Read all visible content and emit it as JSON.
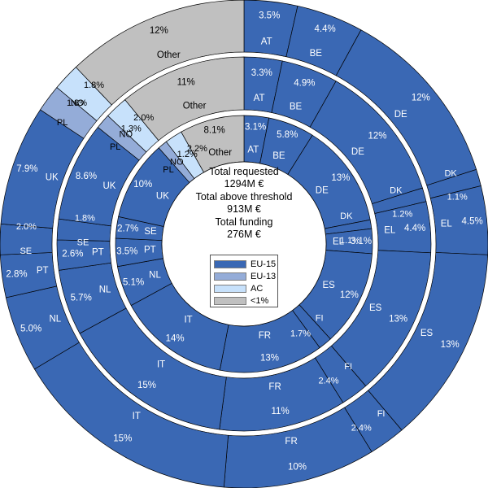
{
  "chart_data": {
    "type": "pie",
    "chart_subtype": "multi-ring donut (sunburst-style concentric rings)",
    "ring_order": "outer ring = Total requested, middle ring = Total above threshold, inner ring = Total funding",
    "start": "12 o'clock, clockwise",
    "center_text": [
      "Total requested",
      "1294M €",
      "Total above threshold",
      "913M €",
      "Total funding",
      "276M €"
    ],
    "legend": [
      {
        "label": "EU-15",
        "color": "#3a68b4"
      },
      {
        "label": "EU-13",
        "color": "#94acd8"
      },
      {
        "label": "AC",
        "color": "#c7e1fb"
      },
      {
        "label": "<1%",
        "color": "#c0c0c0"
      }
    ],
    "rings": [
      {
        "name": "Total requested",
        "total": "1294M €",
        "slices": [
          {
            "label": "AT",
            "value": 3.5,
            "text": "3.5%",
            "group": "EU-15"
          },
          {
            "label": "BE",
            "value": 4.4,
            "text": "4.4%",
            "group": "EU-15"
          },
          {
            "label": "DE",
            "value": 12,
            "text": "12%",
            "group": "EU-15"
          },
          {
            "label": "DK",
            "value": 1.1,
            "text": "1.1%",
            "group": "EU-15"
          },
          {
            "label": "EL",
            "value": 4.5,
            "text": "4.5%",
            "group": "EU-15"
          },
          {
            "label": "ES",
            "value": 13,
            "text": "13%",
            "group": "EU-15"
          },
          {
            "label": "FI",
            "value": 2.4,
            "text": "2.4%",
            "group": "EU-15"
          },
          {
            "label": "FR",
            "value": 10,
            "text": "10%",
            "group": "EU-15"
          },
          {
            "label": "IT",
            "value": 15,
            "text": "15%",
            "group": "EU-15"
          },
          {
            "label": "NL",
            "value": 5.0,
            "text": "5.0%",
            "group": "EU-15"
          },
          {
            "label": "PT",
            "value": 2.8,
            "text": "2.8%",
            "group": "EU-15"
          },
          {
            "label": "SE",
            "value": 2.0,
            "text": "2.0%",
            "group": "EU-15"
          },
          {
            "label": "UK",
            "value": 7.9,
            "text": "7.9%",
            "group": "EU-15"
          },
          {
            "label": "PL",
            "value": 1.8,
            "text": "1.8%",
            "group": "EU-13"
          },
          {
            "label": "NO",
            "value": 1.8,
            "text": "1.8%",
            "group": "AC"
          },
          {
            "label": "Other",
            "value": 12,
            "text": "12%",
            "group": "<1%"
          }
        ]
      },
      {
        "name": "Total above threshold",
        "total": "913M €",
        "slices": [
          {
            "label": "AT",
            "value": 3.3,
            "text": "3.3%",
            "group": "EU-15"
          },
          {
            "label": "BE",
            "value": 4.9,
            "text": "4.9%",
            "group": "EU-15"
          },
          {
            "label": "DE",
            "value": 12,
            "text": "12%",
            "group": "EU-15"
          },
          {
            "label": "DK",
            "value": 1.2,
            "text": "1.2%",
            "group": "EU-15"
          },
          {
            "label": "EL",
            "value": 4.4,
            "text": "4.4%",
            "group": "EU-15"
          },
          {
            "label": "ES",
            "value": 13,
            "text": "13%",
            "group": "EU-15"
          },
          {
            "label": "FI",
            "value": 2.4,
            "text": "2.4%",
            "group": "EU-15"
          },
          {
            "label": "FR",
            "value": 11,
            "text": "11%",
            "group": "EU-15"
          },
          {
            "label": "IT",
            "value": 15,
            "text": "15%",
            "group": "EU-15"
          },
          {
            "label": "NL",
            "value": 5.7,
            "text": "5.7%",
            "group": "EU-15"
          },
          {
            "label": "PT",
            "value": 2.6,
            "text": "2.6%",
            "group": "EU-15"
          },
          {
            "label": "SE",
            "value": 1.8,
            "text": "1.8%",
            "group": "EU-15"
          },
          {
            "label": "UK",
            "value": 8.6,
            "text": "8.6%",
            "group": "EU-15"
          },
          {
            "label": "PL",
            "value": 1.3,
            "text": "1.3%",
            "group": "EU-13"
          },
          {
            "label": "NO",
            "value": 2.0,
            "text": "2.0%",
            "group": "AC"
          },
          {
            "label": "Other",
            "value": 11,
            "text": "11%",
            "group": "<1%"
          }
        ]
      },
      {
        "name": "Total funding",
        "total": "276M €",
        "slices": [
          {
            "label": "AT",
            "value": 3.1,
            "text": "3.1%",
            "group": "EU-15"
          },
          {
            "label": "BE",
            "value": 5.8,
            "text": "5.8%",
            "group": "EU-15"
          },
          {
            "label": "DE",
            "value": 13,
            "text": "13%",
            "group": "EU-15"
          },
          {
            "label": "DK",
            "value": 1.1,
            "text": "1.1%",
            "group": "EU-15"
          },
          {
            "label": "EL",
            "value": 3.1,
            "text": "3.1%",
            "group": "EU-15"
          },
          {
            "label": "ES",
            "value": 12,
            "text": "12%",
            "group": "EU-15"
          },
          {
            "label": "FI",
            "value": 1.7,
            "text": "1.7%",
            "group": "EU-15"
          },
          {
            "label": "FR",
            "value": 13,
            "text": "13%",
            "group": "EU-15"
          },
          {
            "label": "IT",
            "value": 14,
            "text": "14%",
            "group": "EU-15"
          },
          {
            "label": "NL",
            "value": 5.1,
            "text": "5.1%",
            "group": "EU-15"
          },
          {
            "label": "PT",
            "value": 3.5,
            "text": "3.5%",
            "group": "EU-15"
          },
          {
            "label": "SE",
            "value": 2.7,
            "text": "2.7%",
            "group": "EU-15"
          },
          {
            "label": "UK",
            "value": 10,
            "text": "10%",
            "group": "EU-15"
          },
          {
            "label": "PL",
            "value": 1.2,
            "text": "1.2%",
            "group": "EU-13"
          },
          {
            "label": "NO",
            "value": 2.2,
            "text": "2.2%",
            "group": "AC"
          },
          {
            "label": "Other",
            "value": 8.1,
            "text": "8.1%",
            "group": "<1%"
          }
        ]
      }
    ]
  }
}
